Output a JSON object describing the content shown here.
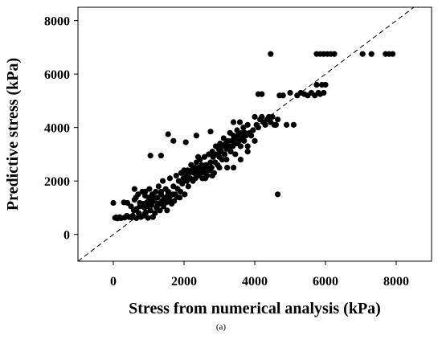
{
  "chart_data": {
    "type": "scatter",
    "title": "",
    "xlabel": "Stress from numerical analysis (kPa)",
    "ylabel": "Predictive stress (kPa)",
    "xlim": [
      -1000,
      9000
    ],
    "ylim": [
      -1000,
      8500
    ],
    "xticks": [
      0,
      2000,
      4000,
      6000,
      8000
    ],
    "yticks": [
      0,
      2000,
      4000,
      6000,
      8000
    ],
    "reference_line": "y = x (dashed)",
    "grid": false,
    "legend": "none",
    "caption": "(a)",
    "marker_color": "#000000",
    "points": [
      [
        0,
        1180
      ],
      [
        50,
        620
      ],
      [
        80,
        640
      ],
      [
        120,
        600
      ],
      [
        180,
        650
      ],
      [
        220,
        610
      ],
      [
        300,
        1200
      ],
      [
        320,
        630
      ],
      [
        380,
        700
      ],
      [
        450,
        650
      ],
      [
        400,
        1180
      ],
      [
        500,
        1050
      ],
      [
        520,
        640
      ],
      [
        550,
        700
      ],
      [
        580,
        900
      ],
      [
        600,
        1300
      ],
      [
        640,
        1380
      ],
      [
        650,
        610
      ],
      [
        700,
        1500
      ],
      [
        720,
        800
      ],
      [
        750,
        1180
      ],
      [
        780,
        650
      ],
      [
        820,
        1600
      ],
      [
        850,
        700
      ],
      [
        880,
        1000
      ],
      [
        900,
        1450
      ],
      [
        920,
        820
      ],
      [
        950,
        1200
      ],
      [
        980,
        620
      ],
      [
        1000,
        1380
      ],
      [
        1020,
        1700
      ],
      [
        1050,
        900
      ],
      [
        1080,
        1100
      ],
      [
        1100,
        1500
      ],
      [
        1120,
        650
      ],
      [
        1150,
        1250
      ],
      [
        1180,
        800
      ],
      [
        1200,
        1600
      ],
      [
        1220,
        1000
      ],
      [
        1250,
        1380
      ],
      [
        1280,
        1800
      ],
      [
        1300,
        1150
      ],
      [
        1320,
        900
      ],
      [
        1350,
        1500
      ],
      [
        1380,
        1250
      ],
      [
        1400,
        2000
      ],
      [
        1420,
        1050
      ],
      [
        1450,
        1380
      ],
      [
        1480,
        1700
      ],
      [
        1500,
        1200
      ],
      [
        1520,
        900
      ],
      [
        1550,
        1600
      ],
      [
        1580,
        1300
      ],
      [
        1600,
        2100
      ],
      [
        1620,
        1450
      ],
      [
        1650,
        1150
      ],
      [
        1680,
        1500
      ],
      [
        1700,
        1800
      ],
      [
        1720,
        1250
      ],
      [
        1750,
        1500
      ],
      [
        1780,
        2200
      ],
      [
        1800,
        1400
      ],
      [
        1820,
        1700
      ],
      [
        1850,
        2000
      ],
      [
        1880,
        1380
      ],
      [
        1900,
        1600
      ],
      [
        1920,
        2300
      ],
      [
        1950,
        1900
      ],
      [
        1980,
        2100
      ],
      [
        2000,
        2400
      ],
      [
        2020,
        1500
      ],
      [
        2050,
        2200
      ],
      [
        2080,
        2000
      ],
      [
        2100,
        2400
      ],
      [
        2120,
        1800
      ],
      [
        2150,
        2300
      ],
      [
        2180,
        2100
      ],
      [
        2200,
        2600
      ],
      [
        2220,
        2400
      ],
      [
        2250,
        2000
      ],
      [
        2280,
        2300
      ],
      [
        2300,
        2500
      ],
      [
        2320,
        2100
      ],
      [
        2350,
        2700
      ],
      [
        2380,
        2400
      ],
      [
        2400,
        2200
      ],
      [
        2420,
        2500
      ],
      [
        2450,
        2800
      ],
      [
        2480,
        2300
      ],
      [
        2500,
        2600
      ],
      [
        2520,
        2100
      ],
      [
        2550,
        2450
      ],
      [
        2580,
        2900
      ],
      [
        2600,
        2300
      ],
      [
        2620,
        2600
      ],
      [
        2650,
        2200
      ],
      [
        2680,
        2500
      ],
      [
        2700,
        3000
      ],
      [
        2720,
        2400
      ],
      [
        2750,
        2700
      ],
      [
        2780,
        2500
      ],
      [
        2800,
        3100
      ],
      [
        2820,
        2900
      ],
      [
        2850,
        2300
      ],
      [
        2880,
        2700
      ],
      [
        2900,
        3300
      ],
      [
        2920,
        3000
      ],
      [
        2950,
        2600
      ],
      [
        2980,
        3200
      ],
      [
        3000,
        2900
      ],
      [
        3020,
        3400
      ],
      [
        3050,
        3100
      ],
      [
        3080,
        2800
      ],
      [
        3100,
        3300
      ],
      [
        3120,
        3600
      ],
      [
        3150,
        3000
      ],
      [
        3180,
        3400
      ],
      [
        3200,
        3200
      ],
      [
        3220,
        2500
      ],
      [
        3250,
        3500
      ],
      [
        3280,
        3300
      ],
      [
        3300,
        3800
      ],
      [
        3320,
        3100
      ],
      [
        3350,
        3500
      ],
      [
        3380,
        3300
      ],
      [
        3400,
        3700
      ],
      [
        3420,
        3600
      ],
      [
        3450,
        3000
      ],
      [
        3480,
        3400
      ],
      [
        3500,
        3900
      ],
      [
        3520,
        3700
      ],
      [
        3550,
        3500
      ],
      [
        3580,
        4200
      ],
      [
        3600,
        3300
      ],
      [
        3620,
        3800
      ],
      [
        3650,
        3600
      ],
      [
        3680,
        4000
      ],
      [
        3700,
        3500
      ],
      [
        3720,
        3800
      ],
      [
        3750,
        3700
      ],
      [
        3800,
        4100
      ],
      [
        3850,
        3800
      ],
      [
        3900,
        3700
      ],
      [
        3950,
        3900
      ],
      [
        4000,
        4400
      ],
      [
        4050,
        4100
      ],
      [
        4100,
        4000
      ],
      [
        4150,
        4300
      ],
      [
        4200,
        4400
      ],
      [
        4250,
        4200
      ],
      [
        4300,
        4100
      ],
      [
        4350,
        4300
      ],
      [
        4400,
        4400
      ],
      [
        4450,
        4200
      ],
      [
        4500,
        4400
      ],
      [
        4550,
        4100
      ],
      [
        4600,
        4100
      ],
      [
        4650,
        4300
      ],
      [
        4100,
        5250
      ],
      [
        4200,
        5250
      ],
      [
        4450,
        6750
      ],
      [
        4650,
        1500
      ],
      [
        4700,
        5200
      ],
      [
        4800,
        5200
      ],
      [
        4900,
        4100
      ],
      [
        5000,
        5300
      ],
      [
        5100,
        4100
      ],
      [
        5200,
        5200
      ],
      [
        5300,
        5300
      ],
      [
        5400,
        5250
      ],
      [
        5500,
        5200
      ],
      [
        5600,
        5300
      ],
      [
        5700,
        5200
      ],
      [
        5750,
        5600
      ],
      [
        5800,
        5300
      ],
      [
        5850,
        5250
      ],
      [
        5900,
        5600
      ],
      [
        5950,
        5300
      ],
      [
        6000,
        5600
      ],
      [
        5750,
        6750
      ],
      [
        5850,
        6750
      ],
      [
        5950,
        6750
      ],
      [
        6050,
        6750
      ],
      [
        6150,
        6750
      ],
      [
        6250,
        6750
      ],
      [
        7050,
        6750
      ],
      [
        7300,
        6750
      ],
      [
        7700,
        6750
      ],
      [
        7800,
        6750
      ],
      [
        7900,
        6750
      ],
      [
        1550,
        3750
      ],
      [
        1700,
        3500
      ],
      [
        2050,
        3450
      ],
      [
        2350,
        3700
      ],
      [
        2750,
        3850
      ],
      [
        1050,
        2950
      ],
      [
        1350,
        2950
      ],
      [
        600,
        1700
      ],
      [
        900,
        1600
      ],
      [
        2400,
        2900
      ],
      [
        650,
        950
      ],
      [
        750,
        1050
      ],
      [
        850,
        1150
      ],
      [
        950,
        1050
      ],
      [
        1050,
        1300
      ],
      [
        1150,
        1400
      ],
      [
        1250,
        1100
      ],
      [
        1350,
        1600
      ],
      [
        1450,
        1300
      ],
      [
        1550,
        1500
      ],
      [
        3000,
        2500
      ],
      [
        3200,
        2800
      ],
      [
        3400,
        2500
      ],
      [
        3600,
        2800
      ],
      [
        3800,
        3100
      ],
      [
        2600,
        2100
      ],
      [
        2800,
        2200
      ],
      [
        3400,
        4200
      ],
      [
        3800,
        3300
      ],
      [
        4000,
        3500
      ]
    ]
  }
}
